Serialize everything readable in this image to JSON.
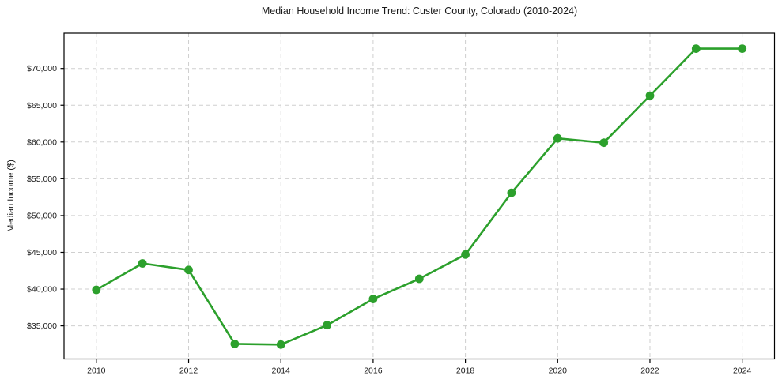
{
  "chart_data": {
    "type": "line",
    "title": "Median Household Income Trend: Custer County, Colorado (2010-2024)",
    "xlabel": "",
    "ylabel": "Median Income ($)",
    "series": [
      {
        "name": "Median Household Income",
        "x": [
          2010,
          2011,
          2012,
          2013,
          2014,
          2015,
          2016,
          2017,
          2018,
          2019,
          2020,
          2021,
          2022,
          2023,
          2024
        ],
        "values": [
          39900,
          43500,
          42600,
          32550,
          32450,
          35100,
          38650,
          41400,
          44700,
          53100,
          60500,
          59900,
          66300,
          72700,
          72700
        ]
      }
    ],
    "xlim": [
      2009.3,
      2024.7
    ],
    "ylim": [
      30500,
      74800
    ],
    "xticks": [
      2010,
      2012,
      2014,
      2016,
      2018,
      2020,
      2022,
      2024
    ],
    "yticks": [
      35000,
      40000,
      45000,
      50000,
      55000,
      60000,
      65000,
      70000
    ],
    "ytick_prefix": "$",
    "grid": true,
    "grid_style": "dashed",
    "legend": "none",
    "colors": {
      "line": "#2ca02c",
      "marker": "#2ca02c",
      "grid": "#cfcfcf",
      "axis": "#000000",
      "text": "#1a1a1a",
      "background": "#ffffff"
    }
  }
}
